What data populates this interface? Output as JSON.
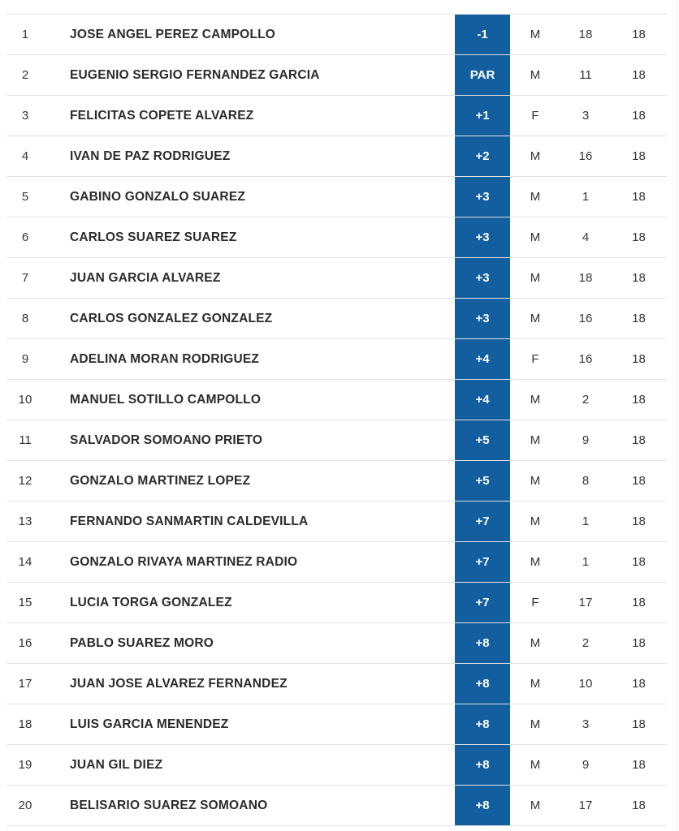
{
  "colors": {
    "score_badge_bg": "#135e9e",
    "score_badge_text": "#ffffff",
    "row_border": "#e2e2e2",
    "text_color": "#333333",
    "name_color": "#2b2b2b",
    "page_bg": "#ffffff"
  },
  "table": {
    "rows": [
      {
        "position": "1",
        "name": "JOSE ANGEL PEREZ CAMPOLLO",
        "score": "-1",
        "gender": "M",
        "value1": "18",
        "value2": "18"
      },
      {
        "position": "2",
        "name": "EUGENIO SERGIO FERNANDEZ GARCIA",
        "score": "PAR",
        "gender": "M",
        "value1": "11",
        "value2": "18"
      },
      {
        "position": "3",
        "name": "FELICITAS COPETE ALVAREZ",
        "score": "+1",
        "gender": "F",
        "value1": "3",
        "value2": "18"
      },
      {
        "position": "4",
        "name": "IVAN DE PAZ RODRIGUEZ",
        "score": "+2",
        "gender": "M",
        "value1": "16",
        "value2": "18"
      },
      {
        "position": "5",
        "name": "GABINO GONZALO SUAREZ",
        "score": "+3",
        "gender": "M",
        "value1": "1",
        "value2": "18"
      },
      {
        "position": "6",
        "name": "CARLOS SUAREZ SUAREZ",
        "score": "+3",
        "gender": "M",
        "value1": "4",
        "value2": "18"
      },
      {
        "position": "7",
        "name": "JUAN GARCIA ALVAREZ",
        "score": "+3",
        "gender": "M",
        "value1": "18",
        "value2": "18"
      },
      {
        "position": "8",
        "name": "CARLOS GONZALEZ GONZALEZ",
        "score": "+3",
        "gender": "M",
        "value1": "16",
        "value2": "18"
      },
      {
        "position": "9",
        "name": "ADELINA MORAN RODRIGUEZ",
        "score": "+4",
        "gender": "F",
        "value1": "16",
        "value2": "18"
      },
      {
        "position": "10",
        "name": "MANUEL SOTILLO CAMPOLLO",
        "score": "+4",
        "gender": "M",
        "value1": "2",
        "value2": "18"
      },
      {
        "position": "11",
        "name": "SALVADOR SOMOANO PRIETO",
        "score": "+5",
        "gender": "M",
        "value1": "9",
        "value2": "18"
      },
      {
        "position": "12",
        "name": "GONZALO MARTINEZ LOPEZ",
        "score": "+5",
        "gender": "M",
        "value1": "8",
        "value2": "18"
      },
      {
        "position": "13",
        "name": "FERNANDO SANMARTIN CALDEVILLA",
        "score": "+7",
        "gender": "M",
        "value1": "1",
        "value2": "18"
      },
      {
        "position": "14",
        "name": "GONZALO RIVAYA MARTINEZ RADIO",
        "score": "+7",
        "gender": "M",
        "value1": "1",
        "value2": "18"
      },
      {
        "position": "15",
        "name": "LUCIA TORGA GONZALEZ",
        "score": "+7",
        "gender": "F",
        "value1": "17",
        "value2": "18"
      },
      {
        "position": "16",
        "name": "PABLO SUAREZ MORO",
        "score": "+8",
        "gender": "M",
        "value1": "2",
        "value2": "18"
      },
      {
        "position": "17",
        "name": "JUAN JOSE ALVAREZ FERNANDEZ",
        "score": "+8",
        "gender": "M",
        "value1": "10",
        "value2": "18"
      },
      {
        "position": "18",
        "name": "LUIS GARCIA MENENDEZ",
        "score": "+8",
        "gender": "M",
        "value1": "3",
        "value2": "18"
      },
      {
        "position": "19",
        "name": "JUAN GIL DIEZ",
        "score": "+8",
        "gender": "M",
        "value1": "9",
        "value2": "18"
      },
      {
        "position": "20",
        "name": "BELISARIO SUAREZ SOMOANO",
        "score": "+8",
        "gender": "M",
        "value1": "17",
        "value2": "18"
      }
    ]
  }
}
